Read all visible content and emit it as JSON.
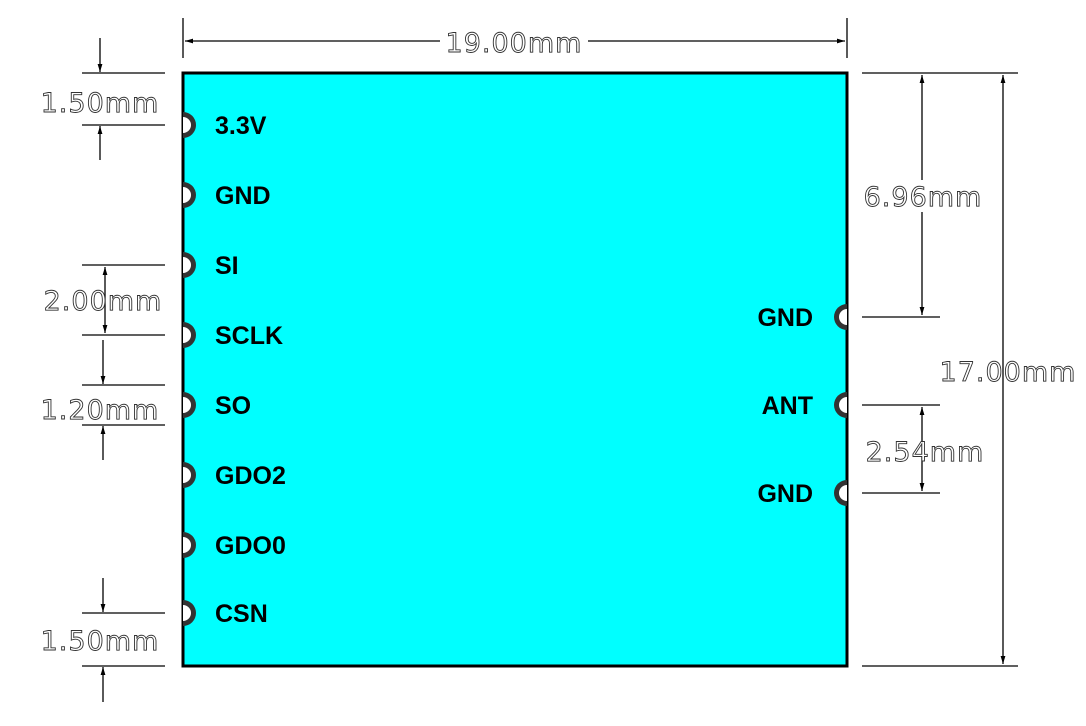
{
  "board": {
    "color": "#00FFFF",
    "pad_color": "#333333"
  },
  "left_pins": [
    "3.3V",
    "GND",
    "SI",
    "SCLK",
    "SO",
    "GDO2",
    "GDO0",
    "CSN"
  ],
  "right_pins": [
    "GND",
    "ANT",
    "GND"
  ],
  "dimensions": {
    "width": "19.00mm",
    "height": "17.00mm",
    "top_to_first_left": "1.50mm",
    "left_pitch": "2.00mm",
    "left_pad_size": "1.20mm",
    "last_left_to_bottom": "1.50mm",
    "top_to_right_gnd": "6.96mm",
    "right_pitch": "2.54mm"
  }
}
